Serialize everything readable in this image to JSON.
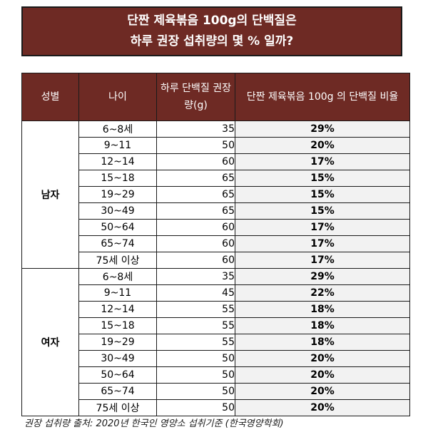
{
  "title": {
    "line1": "단짠 제육볶음 100g의 단백질은",
    "line2": "하루 권장 섭취량의 몇 % 일까?"
  },
  "table": {
    "headers": {
      "gender": "성별",
      "age": "나이",
      "amount": "하루 단백질 권장량(g)",
      "ratio": "단짠 제육볶음 100g 의 단백질 비율"
    },
    "groups": [
      {
        "gender": "남자",
        "rows": [
          {
            "age": "6~8세",
            "amount": "35",
            "ratio": "29%"
          },
          {
            "age": "9~11",
            "amount": "50",
            "ratio": "20%"
          },
          {
            "age": "12~14",
            "amount": "60",
            "ratio": "17%"
          },
          {
            "age": "15~18",
            "amount": "65",
            "ratio": "15%"
          },
          {
            "age": "19~29",
            "amount": "65",
            "ratio": "15%"
          },
          {
            "age": "30~49",
            "amount": "65",
            "ratio": "15%"
          },
          {
            "age": "50~64",
            "amount": "60",
            "ratio": "17%"
          },
          {
            "age": "65~74",
            "amount": "60",
            "ratio": "17%"
          },
          {
            "age": "75세 이상",
            "amount": "60",
            "ratio": "17%"
          }
        ]
      },
      {
        "gender": "여자",
        "rows": [
          {
            "age": "6~8세",
            "amount": "35",
            "ratio": "29%"
          },
          {
            "age": "9~11",
            "amount": "45",
            "ratio": "22%"
          },
          {
            "age": "12~14",
            "amount": "55",
            "ratio": "18%"
          },
          {
            "age": "15~18",
            "amount": "55",
            "ratio": "18%"
          },
          {
            "age": "19~29",
            "amount": "55",
            "ratio": "18%"
          },
          {
            "age": "30~49",
            "amount": "50",
            "ratio": "20%"
          },
          {
            "age": "50~64",
            "amount": "50",
            "ratio": "20%"
          },
          {
            "age": "65~74",
            "amount": "50",
            "ratio": "20%"
          },
          {
            "age": "75세 이상",
            "amount": "50",
            "ratio": "20%"
          }
        ]
      }
    ]
  },
  "source": "권장 섭취량 출처: 2020년 한국인 영양소 섭취기준 (한국영양학회)",
  "colors": {
    "header_bg": "#6e2a24",
    "ratio_bg": "#f2f2f2"
  }
}
